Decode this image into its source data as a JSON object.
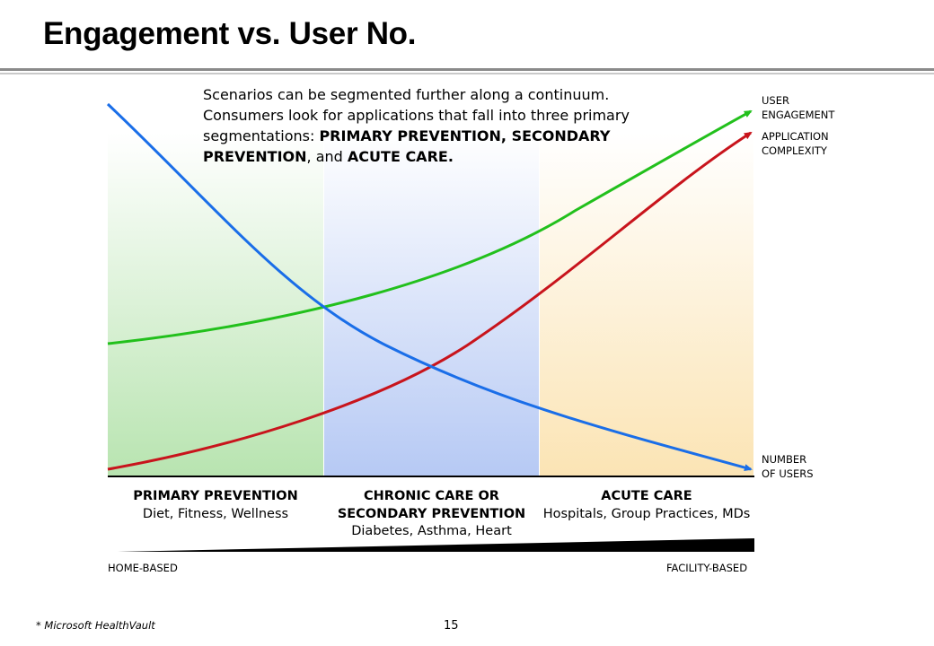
{
  "title": "Engagement vs. User No.",
  "intro": {
    "line1": "Scenarios can be segmented further along a continuum.",
    "line2": "Consumers look for applications that fall into three primary",
    "line3_pre": "segmentations:  ",
    "term1": "PRIMARY PREVENTION",
    "sep1": ", ",
    "term2a": "SECONDARY",
    "term2b": "PREVENTION",
    "sep2": ", and ",
    "term3": "ACUTE CARE."
  },
  "curves": {
    "engagement": {
      "label_line1": "USER",
      "label_line2": "ENGAGEMENT",
      "color": "#22c01c"
    },
    "complexity": {
      "label_line1": "APPLICATION",
      "label_line2": "COMPLEXITY",
      "color": "#c8141c"
    },
    "users": {
      "label_line1": "NUMBER",
      "label_line2": "OF USERS",
      "color": "#1a6ee8"
    }
  },
  "segments": [
    {
      "heading": "PRIMARY PREVENTION",
      "heading2": "",
      "detail": "Diet, Fitness, Wellness",
      "color": "#b8e4b0"
    },
    {
      "heading": "CHRONIC CARE OR",
      "heading2": "SECONDARY PREVENTION",
      "detail": "Diabetes, Asthma, Heart",
      "color": "#b6c9f4"
    },
    {
      "heading": "ACUTE CARE",
      "heading2": "",
      "detail": "Hospitals, Group Practices, MDs",
      "color": "#fbe4b4"
    }
  ],
  "continuum": {
    "left_label": "HOME-BASED",
    "right_label": "FACILITY-BASED"
  },
  "footnote": "*  Microsoft HealthVault",
  "page_number": "15"
}
